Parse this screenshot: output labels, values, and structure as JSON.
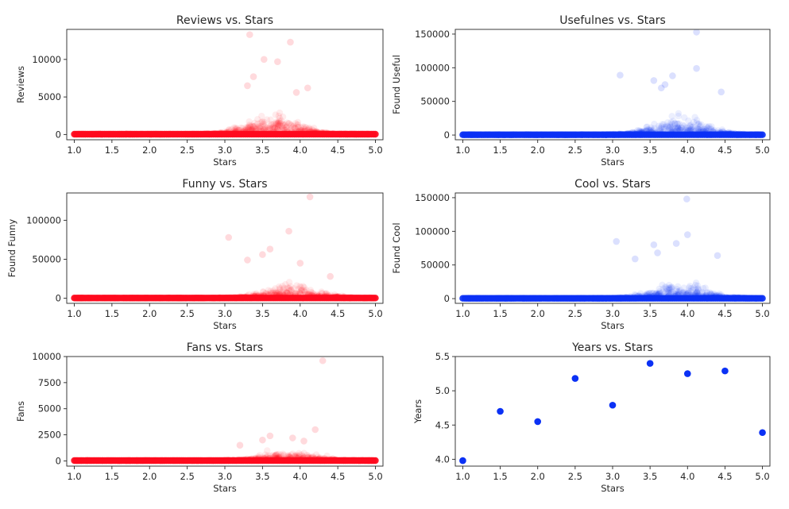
{
  "chart_data": [
    {
      "type": "scatter",
      "title": "Reviews vs. Stars",
      "xlabel": "Stars",
      "ylabel": "Reviews",
      "xlim": [
        0.9,
        5.1
      ],
      "ylim": [
        -700,
        14000
      ],
      "xticks": [
        1.0,
        1.5,
        2.0,
        2.5,
        3.0,
        3.5,
        4.0,
        4.5,
        5.0
      ],
      "xtick_labels": [
        "1.0",
        "1.5",
        "2.0",
        "2.5",
        "3.0",
        "3.5",
        "4.0",
        "4.5",
        "5.0"
      ],
      "yticks": [
        0,
        5000,
        10000
      ],
      "ytick_labels": [
        "0",
        "5000",
        "10000"
      ],
      "color": "#ff0a1e",
      "alpha": 0.08,
      "grid": false,
      "peak_x": 3.65,
      "peak_y": 2200,
      "base_y": 40,
      "x": [
        3.33,
        3.87,
        3.52,
        3.7,
        3.38,
        3.3,
        4.1,
        3.95
      ],
      "y": [
        13300,
        12300,
        10000,
        9700,
        7700,
        6500,
        6200,
        5600
      ]
    },
    {
      "type": "scatter",
      "title": "Usefulnes vs. Stars",
      "xlabel": "Stars",
      "ylabel": "Found Useful",
      "xlim": [
        0.9,
        5.1
      ],
      "ylim": [
        -7000,
        157000
      ],
      "xticks": [
        1.0,
        1.5,
        2.0,
        2.5,
        3.0,
        3.5,
        4.0,
        4.5,
        5.0
      ],
      "xtick_labels": [
        "1.0",
        "1.5",
        "2.0",
        "2.5",
        "3.0",
        "3.5",
        "4.0",
        "4.5",
        "5.0"
      ],
      "yticks": [
        0,
        50000,
        100000,
        150000
      ],
      "ytick_labels": [
        "0",
        "50000",
        "100000",
        "150000"
      ],
      "color": "#0b31f5",
      "alpha": 0.08,
      "grid": false,
      "peak_x": 3.9,
      "peak_y": 22000,
      "base_y": 400,
      "x": [
        4.12,
        4.12,
        3.1,
        3.55,
        3.8,
        3.65,
        4.45,
        3.7
      ],
      "y": [
        153000,
        99000,
        89000,
        81000,
        88000,
        70000,
        64000,
        75000
      ]
    },
    {
      "type": "scatter",
      "title": "Funny vs. Stars",
      "xlabel": "Stars",
      "ylabel": "Found Funny",
      "xlim": [
        0.9,
        5.1
      ],
      "ylim": [
        -6500,
        135000
      ],
      "xticks": [
        1.0,
        1.5,
        2.0,
        2.5,
        3.0,
        3.5,
        4.0,
        4.5,
        5.0
      ],
      "xtick_labels": [
        "1.0",
        "1.5",
        "2.0",
        "2.5",
        "3.0",
        "3.5",
        "4.0",
        "4.5",
        "5.0"
      ],
      "yticks": [
        0,
        50000,
        100000
      ],
      "ytick_labels": [
        "0",
        "50000",
        "100000"
      ],
      "color": "#ff0a1e",
      "alpha": 0.08,
      "grid": false,
      "peak_x": 3.9,
      "peak_y": 13000,
      "base_y": 300,
      "x": [
        4.13,
        3.85,
        3.05,
        3.6,
        3.5,
        4.0,
        3.3,
        4.4
      ],
      "y": [
        130000,
        86000,
        78000,
        63000,
        56000,
        45000,
        49000,
        28000
      ]
    },
    {
      "type": "scatter",
      "title": "Cool vs. Stars",
      "xlabel": "Stars",
      "ylabel": "Found Cool",
      "xlim": [
        0.9,
        5.1
      ],
      "ylim": [
        -7000,
        157000
      ],
      "xticks": [
        1.0,
        1.5,
        2.0,
        2.5,
        3.0,
        3.5,
        4.0,
        4.5,
        5.0
      ],
      "xtick_labels": [
        "1.0",
        "1.5",
        "2.0",
        "2.5",
        "3.0",
        "3.5",
        "4.0",
        "4.5",
        "5.0"
      ],
      "yticks": [
        0,
        50000,
        100000,
        150000
      ],
      "ytick_labels": [
        "0",
        "50000",
        "100000",
        "150000"
      ],
      "color": "#0b31f5",
      "alpha": 0.08,
      "grid": false,
      "peak_x": 3.9,
      "peak_y": 18000,
      "base_y": 400,
      "x": [
        3.99,
        4.0,
        3.05,
        3.55,
        3.85,
        3.6,
        4.4,
        3.3
      ],
      "y": [
        148000,
        95000,
        85000,
        80000,
        82000,
        68000,
        64000,
        59000
      ]
    },
    {
      "type": "scatter",
      "title": "Fans vs. Stars",
      "xlabel": "Stars",
      "ylabel": "Fans",
      "xlim": [
        0.9,
        5.1
      ],
      "ylim": [
        -500,
        10000
      ],
      "xticks": [
        1.0,
        1.5,
        2.0,
        2.5,
        3.0,
        3.5,
        4.0,
        4.5,
        5.0
      ],
      "xtick_labels": [
        "1.0",
        "1.5",
        "2.0",
        "2.5",
        "3.0",
        "3.5",
        "4.0",
        "4.5",
        "5.0"
      ],
      "yticks": [
        0,
        2500,
        5000,
        7500,
        10000
      ],
      "ytick_labels": [
        "0",
        "2500",
        "5000",
        "7500",
        "10000"
      ],
      "color": "#ff0a1e",
      "alpha": 0.08,
      "grid": false,
      "peak_x": 3.85,
      "peak_y": 700,
      "base_y": 30,
      "x": [
        4.3,
        4.2,
        3.6,
        3.9,
        3.5,
        4.05,
        3.2
      ],
      "y": [
        9600,
        3000,
        2400,
        2200,
        2000,
        1900,
        1500
      ]
    },
    {
      "type": "scatter",
      "title": "Years vs. Stars",
      "xlabel": "Stars",
      "ylabel": "Years",
      "xlim": [
        0.9,
        5.1
      ],
      "ylim": [
        3.9,
        5.5
      ],
      "xticks": [
        1.0,
        1.5,
        2.0,
        2.5,
        3.0,
        3.5,
        4.0,
        4.5,
        5.0
      ],
      "xtick_labels": [
        "1.0",
        "1.5",
        "2.0",
        "2.5",
        "3.0",
        "3.5",
        "4.0",
        "4.5",
        "5.0"
      ],
      "yticks": [
        4.0,
        4.5,
        5.0,
        5.5
      ],
      "ytick_labels": [
        "4.0",
        "4.5",
        "5.0",
        "5.5"
      ],
      "color": "#0b31f5",
      "alpha": 1,
      "grid": false,
      "x": [
        1.0,
        1.5,
        2.0,
        2.5,
        3.0,
        3.5,
        4.0,
        4.5,
        5.0
      ],
      "y": [
        3.98,
        4.7,
        4.55,
        5.18,
        4.79,
        5.4,
        5.25,
        5.29,
        4.39
      ]
    }
  ]
}
